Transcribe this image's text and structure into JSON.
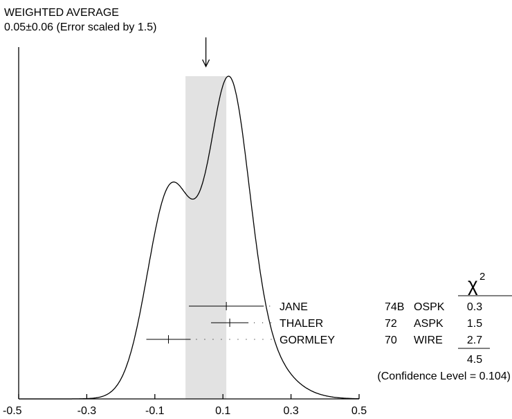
{
  "chart_data": {
    "type": "ideogram",
    "header": {
      "line1": "WEIGHTED AVERAGE",
      "line2": "0.05±0.06 (Error scaled by 1.5)"
    },
    "weighted_average": {
      "value": 0.05,
      "error": 0.06,
      "scale_factor": 1.5
    },
    "band": [
      -0.01,
      0.11
    ],
    "xlim": [
      -0.5,
      0.5
    ],
    "x_ticks": [
      -0.5,
      -0.3,
      -0.1,
      0.1,
      0.3,
      0.5
    ],
    "x_tick_labels": [
      "-0.5",
      "-0.3",
      "-0.1",
      "0.1",
      "0.3",
      "0.5"
    ],
    "measurements": [
      {
        "author": "JANE",
        "year": "74B",
        "technique": "OSPK",
        "value": 0.11,
        "error": 0.11,
        "chi2": "0.3"
      },
      {
        "author": "THALER",
        "year": "72",
        "technique": "ASPK",
        "value": 0.12,
        "error": 0.055,
        "chi2": "1.5"
      },
      {
        "author": "GORMLEY",
        "year": "70",
        "technique": "WIRE",
        "value": -0.06,
        "error": 0.065,
        "chi2": "2.7"
      }
    ],
    "chi2_header": "χ",
    "chi2_superscript": "2",
    "chi2_total": "4.5",
    "confidence_level": "(Confidence Level = 0.104)"
  }
}
